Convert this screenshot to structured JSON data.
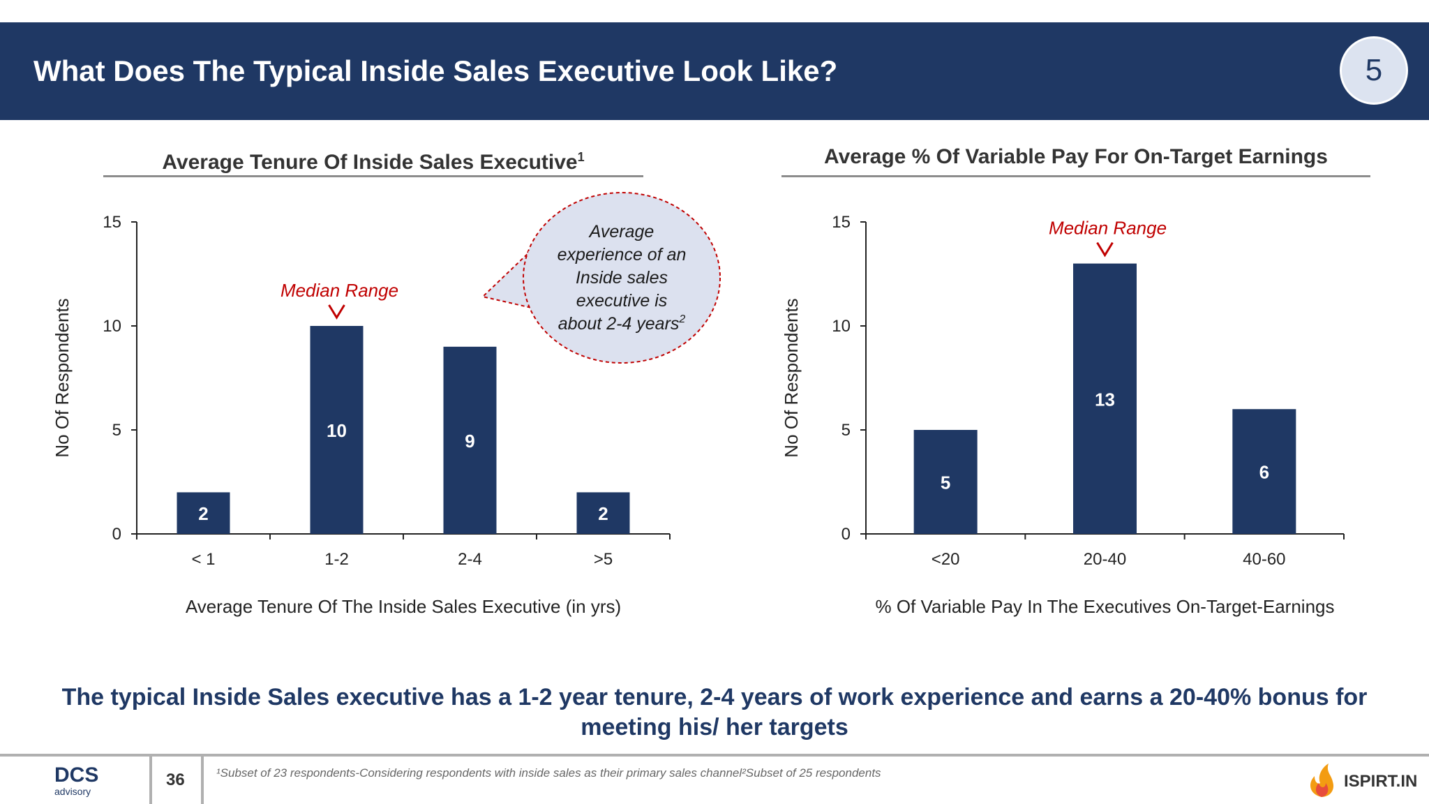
{
  "header": {
    "title": "What Does The Typical Inside Sales Executive Look Like?",
    "slide_number": "5"
  },
  "charts": [
    {
      "title": "Average Tenure Of Inside Sales Executive",
      "title_sup": "1"
    },
    {
      "title": "Average % Of Variable Pay For On-Target Earnings"
    }
  ],
  "chart_data": [
    {
      "type": "bar",
      "title": "Average Tenure Of Inside Sales Executive¹",
      "categories": [
        "< 1",
        "1-2",
        "2-4",
        ">5"
      ],
      "values": [
        2,
        10,
        9,
        2
      ],
      "xlabel": "Average Tenure Of The Inside Sales Executive (in yrs)",
      "ylabel": "No Of Respondents",
      "ylim": [
        0,
        15
      ],
      "yticks": [
        0,
        5,
        10,
        15
      ],
      "annotation": {
        "text": "Median Range",
        "category_index": 1
      },
      "callout": {
        "lines": [
          "Average",
          "experience of an",
          "Inside sales",
          "executive is",
          "about 2-4 years"
        ],
        "sup": "2"
      },
      "bar_color": "#1f3864"
    },
    {
      "type": "bar",
      "title": "Average % Of Variable Pay For On-Target Earnings",
      "categories": [
        "<20",
        "20-40",
        "40-60"
      ],
      "values": [
        5,
        13,
        6
      ],
      "xlabel": "% Of Variable Pay In The Executives On-Target-Earnings",
      "ylabel": "No Of Respondents",
      "ylim": [
        0,
        15
      ],
      "yticks": [
        0,
        5,
        10,
        15
      ],
      "annotation": {
        "text": "Median Range",
        "category_index": 1
      },
      "bar_color": "#1f3864"
    }
  ],
  "summary": "The typical Inside Sales executive has a 1-2 year tenure, 2-4 years of work experience and earns a 20-40% bonus for meeting his/ her targets",
  "footer": {
    "logo_main": "DCS",
    "logo_sub": "advisory",
    "page": "36",
    "footnote": "¹Subset of 23 respondents-Considering respondents with inside sales as their primary sales channel²Subset of 25 respondents",
    "partner_logo": "ISPIRT.IN"
  },
  "colors": {
    "header": "#1f3864",
    "bar": "#1f3864",
    "annotation": "#c00000",
    "callout_fill": "#dce1ef"
  }
}
